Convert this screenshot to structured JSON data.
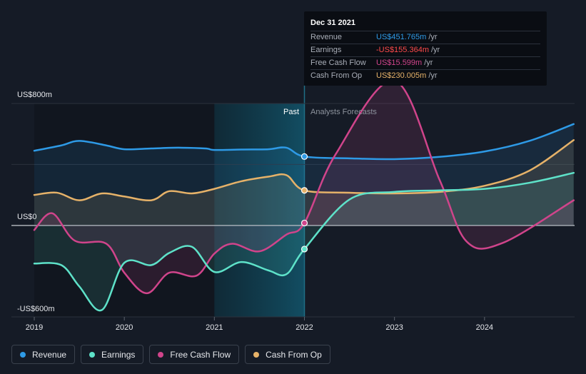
{
  "chart_data": {
    "type": "line",
    "ylabel_top": "US$800m",
    "ylabel_zero": "US$0",
    "ylabel_bottom": "-US$600m",
    "ylim": [
      -600,
      800
    ],
    "xlim": [
      2019,
      2025
    ],
    "x_ticks": [
      "2019",
      "2020",
      "2021",
      "2022",
      "2023",
      "2024"
    ],
    "x_tick_values": [
      2019,
      2020,
      2021,
      2022,
      2023,
      2024
    ],
    "past_label": "Past",
    "forecast_label": "Analysts Forecasts",
    "divider_x": 2022,
    "highlight_range": [
      2021,
      2022
    ],
    "series": [
      {
        "name": "Revenue",
        "color": "#2e9ae6",
        "points": [
          [
            2019.0,
            490
          ],
          [
            2019.3,
            525
          ],
          [
            2019.5,
            555
          ],
          [
            2019.8,
            525
          ],
          [
            2020.0,
            500
          ],
          [
            2020.3,
            505
          ],
          [
            2020.6,
            510
          ],
          [
            2020.9,
            505
          ],
          [
            2021.0,
            495
          ],
          [
            2021.3,
            498
          ],
          [
            2021.6,
            500
          ],
          [
            2021.8,
            510
          ],
          [
            2022.0,
            452
          ],
          [
            2022.5,
            440
          ],
          [
            2023.0,
            435
          ],
          [
            2023.5,
            450
          ],
          [
            2024.0,
            485
          ],
          [
            2024.5,
            555
          ],
          [
            2024.99,
            665
          ]
        ]
      },
      {
        "name": "Earnings",
        "color": "#5ee2c9",
        "points": [
          [
            2019.0,
            -250
          ],
          [
            2019.3,
            -260
          ],
          [
            2019.5,
            -400
          ],
          [
            2019.75,
            -555
          ],
          [
            2020.0,
            -245
          ],
          [
            2020.3,
            -260
          ],
          [
            2020.5,
            -180
          ],
          [
            2020.75,
            -140
          ],
          [
            2021.0,
            -305
          ],
          [
            2021.3,
            -240
          ],
          [
            2021.6,
            -295
          ],
          [
            2021.8,
            -320
          ],
          [
            2022.0,
            -155
          ],
          [
            2022.5,
            170
          ],
          [
            2023.0,
            220
          ],
          [
            2023.5,
            230
          ],
          [
            2024.0,
            240
          ],
          [
            2024.5,
            280
          ],
          [
            2024.99,
            345
          ]
        ]
      },
      {
        "name": "Free Cash Flow",
        "color": "#d0448b",
        "points": [
          [
            2019.0,
            -30
          ],
          [
            2019.2,
            80
          ],
          [
            2019.45,
            -100
          ],
          [
            2019.8,
            -120
          ],
          [
            2020.0,
            -310
          ],
          [
            2020.25,
            -445
          ],
          [
            2020.5,
            -310
          ],
          [
            2020.8,
            -330
          ],
          [
            2021.0,
            -185
          ],
          [
            2021.2,
            -120
          ],
          [
            2021.5,
            -170
          ],
          [
            2021.8,
            -60
          ],
          [
            2022.0,
            16
          ],
          [
            2022.35,
            470
          ],
          [
            2023.0,
            950
          ],
          [
            2023.5,
            300
          ],
          [
            2023.8,
            -105
          ],
          [
            2024.2,
            -115
          ],
          [
            2024.99,
            165
          ]
        ]
      },
      {
        "name": "Cash From Op",
        "color": "#e6b269",
        "points": [
          [
            2019.0,
            200
          ],
          [
            2019.25,
            215
          ],
          [
            2019.5,
            165
          ],
          [
            2019.75,
            210
          ],
          [
            2020.0,
            190
          ],
          [
            2020.3,
            165
          ],
          [
            2020.5,
            225
          ],
          [
            2020.75,
            210
          ],
          [
            2021.0,
            240
          ],
          [
            2021.3,
            290
          ],
          [
            2021.6,
            320
          ],
          [
            2021.8,
            330
          ],
          [
            2022.0,
            230
          ],
          [
            2022.5,
            215
          ],
          [
            2023.0,
            210
          ],
          [
            2023.5,
            220
          ],
          [
            2024.0,
            260
          ],
          [
            2024.5,
            360
          ],
          [
            2024.99,
            560
          ]
        ]
      }
    ]
  },
  "tooltip": {
    "date": "Dec 31 2021",
    "unit": "/yr",
    "rows": [
      {
        "name": "Revenue",
        "value": "US$451.765m",
        "color": "#2e9ae6"
      },
      {
        "name": "Earnings",
        "value": "-US$155.364m",
        "color": "#ff4a4a"
      },
      {
        "name": "Free Cash Flow",
        "value": "US$15.599m",
        "color": "#d0448b"
      },
      {
        "name": "Cash From Op",
        "value": "US$230.005m",
        "color": "#e6b269"
      }
    ]
  },
  "legend": [
    {
      "label": "Revenue",
      "color": "#2e9ae6"
    },
    {
      "label": "Earnings",
      "color": "#5ee2c9"
    },
    {
      "label": "Free Cash Flow",
      "color": "#d0448b"
    },
    {
      "label": "Cash From Op",
      "color": "#e6b269"
    }
  ]
}
